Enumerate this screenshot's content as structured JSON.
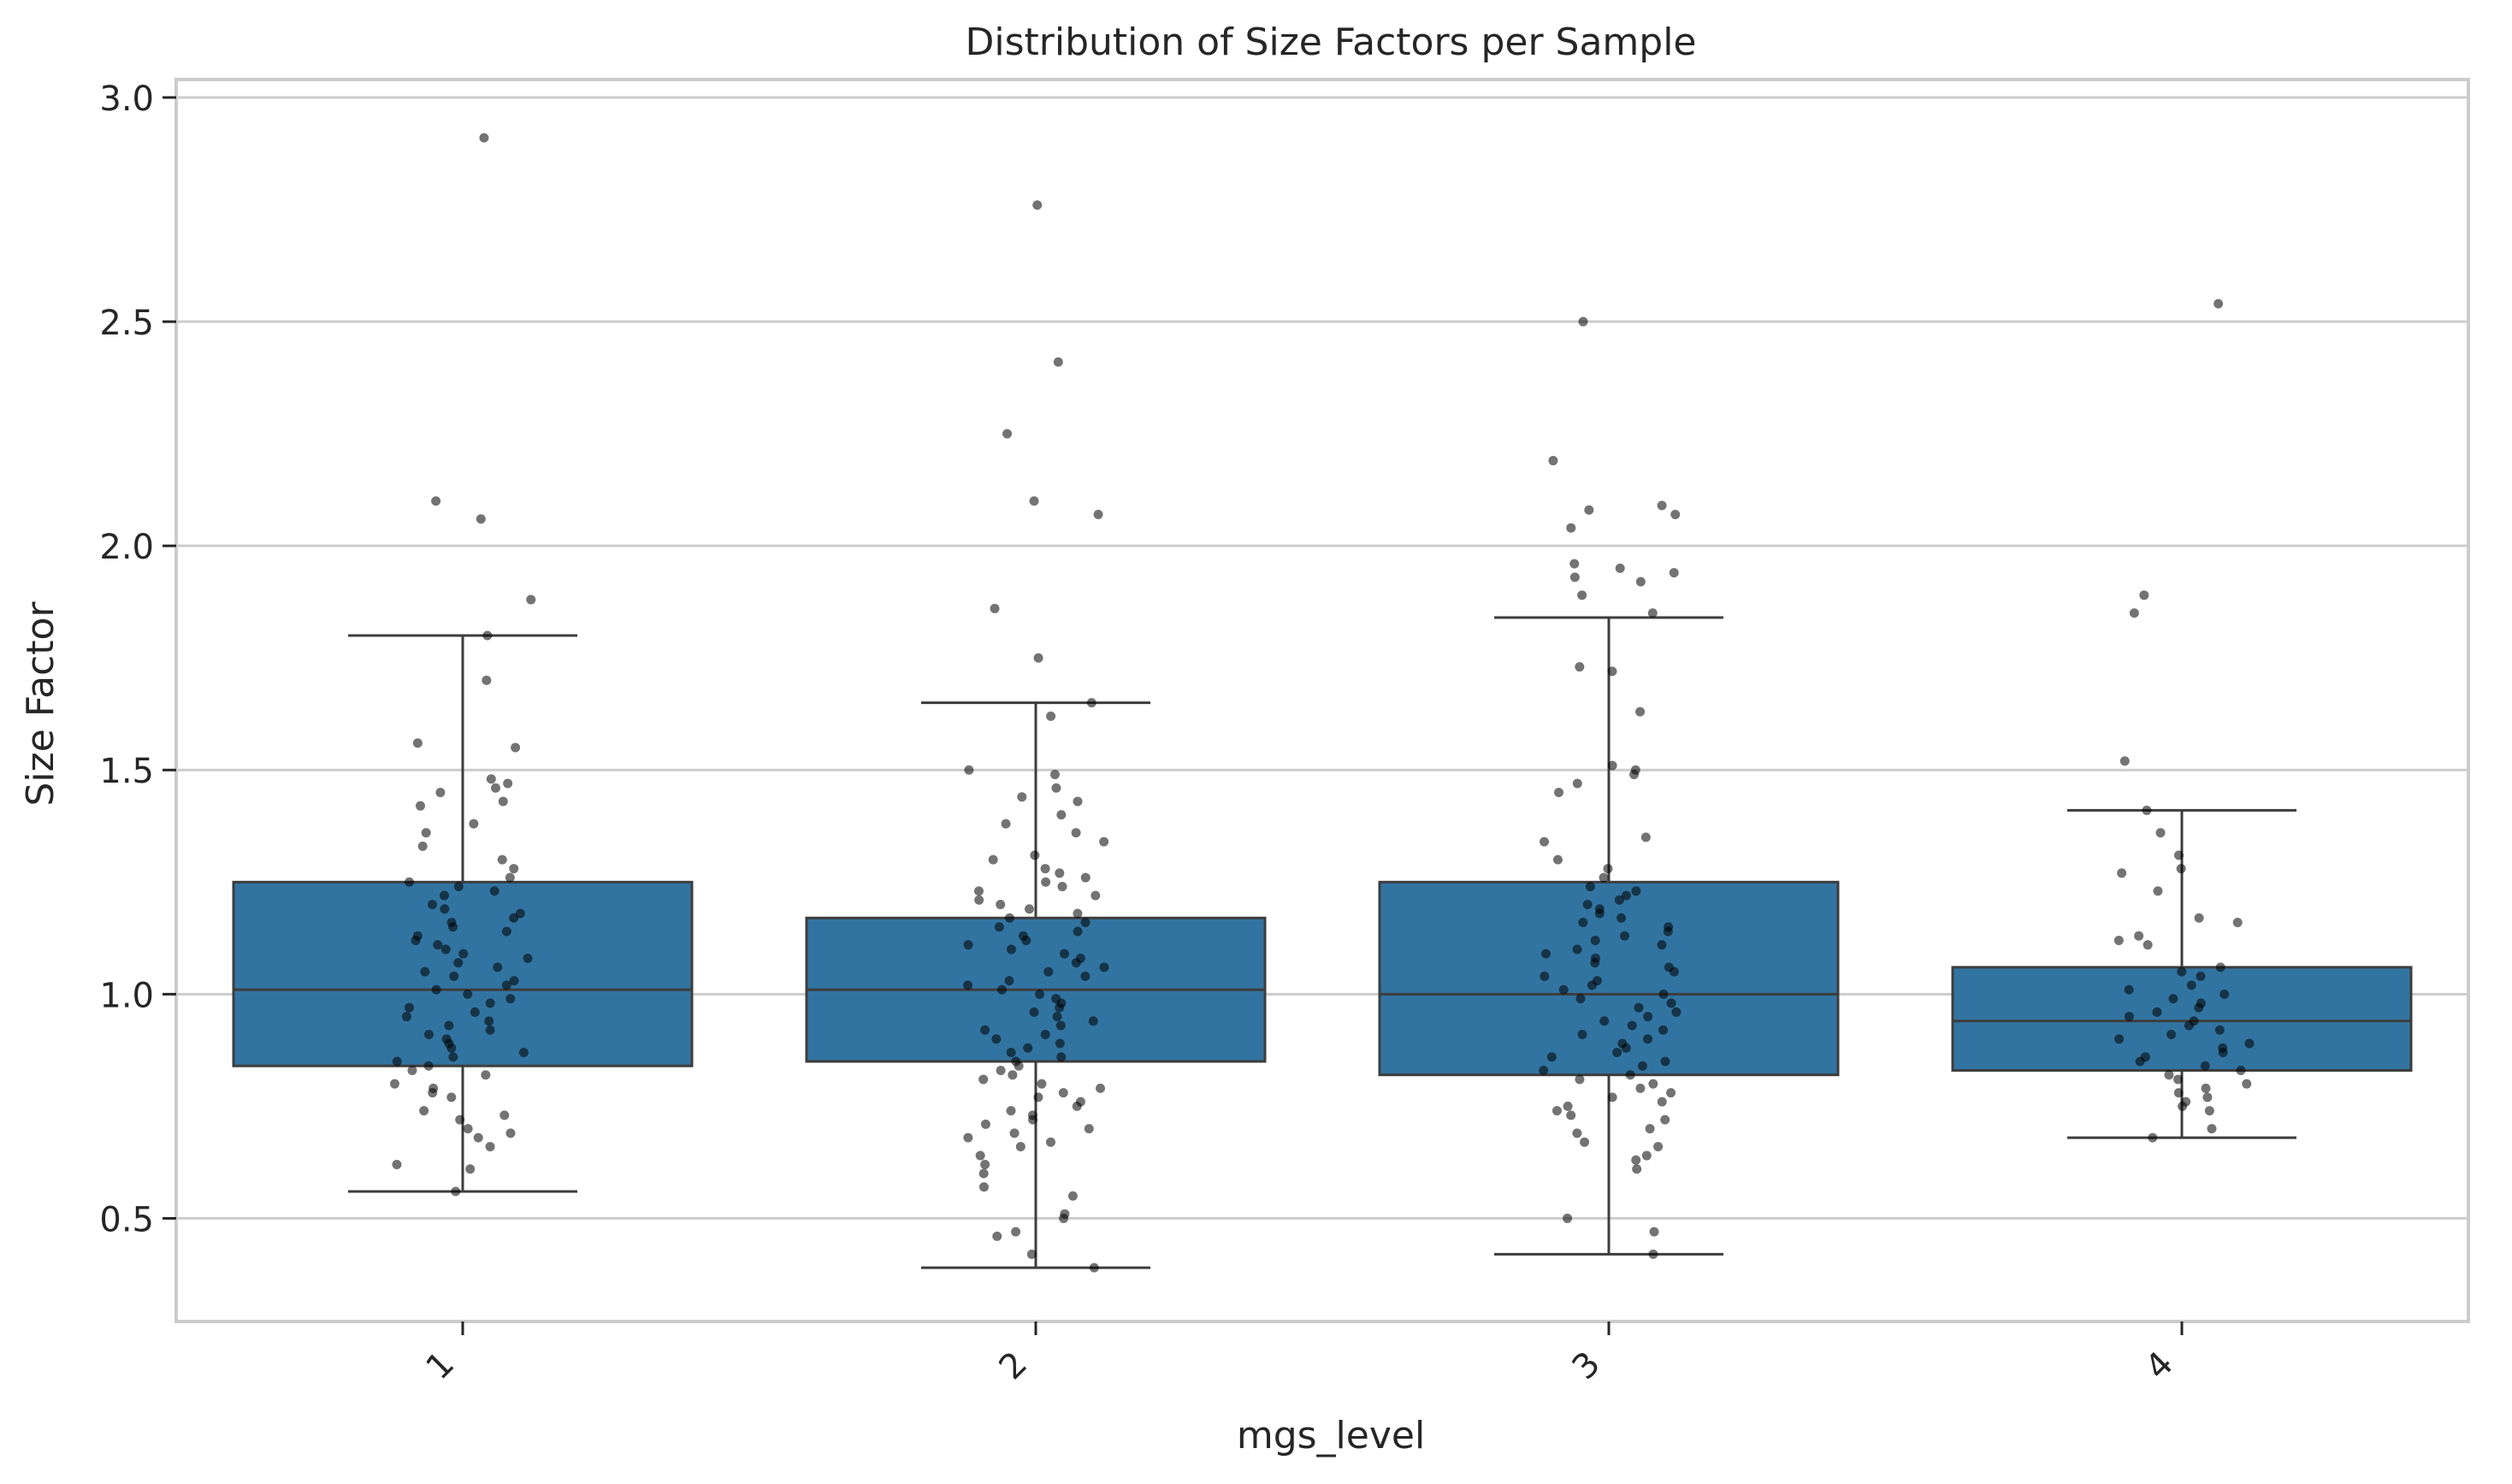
{
  "chart_data": {
    "type": "box",
    "title": "Distribution of Size Factors per Sample",
    "xlabel": "mgs_level",
    "ylabel": "Size Factor",
    "categories": [
      "1",
      "2",
      "3",
      "4"
    ],
    "ylim": [
      0.27,
      3.04
    ],
    "yticks": [
      0.5,
      1.0,
      1.5,
      2.0,
      2.5,
      3.0
    ],
    "ytick_labels": [
      "0.5",
      "1.0",
      "1.5",
      "2.0",
      "2.5",
      "3.0"
    ],
    "grid": "horizontal",
    "legend": "none",
    "colors": {
      "box": "#3274a1",
      "outline": "#3d3d3d",
      "points": "#000000",
      "grid": "#cccccc",
      "frame": "#cccccc"
    },
    "boxes": [
      {
        "category": "1",
        "whisker_low": 0.56,
        "q1": 0.84,
        "median": 1.01,
        "q3": 1.25,
        "whisker_high": 1.8
      },
      {
        "category": "2",
        "whisker_low": 0.39,
        "q1": 0.85,
        "median": 1.01,
        "q3": 1.17,
        "whisker_high": 1.65
      },
      {
        "category": "3",
        "whisker_low": 0.42,
        "q1": 0.82,
        "median": 1.0,
        "q3": 1.25,
        "whisker_high": 1.84
      },
      {
        "category": "4",
        "whisker_low": 0.68,
        "q1": 0.83,
        "median": 0.94,
        "q3": 1.06,
        "whisker_high": 1.41
      }
    ],
    "points": {
      "1": [
        2.91,
        2.1,
        2.06,
        1.88,
        1.8,
        1.7,
        1.56,
        1.55,
        1.48,
        1.47,
        1.46,
        1.45,
        1.43,
        1.42,
        1.38,
        1.36,
        1.33,
        1.3,
        1.28,
        1.26,
        1.25,
        1.24,
        1.23,
        1.22,
        1.2,
        1.19,
        1.18,
        1.17,
        1.16,
        1.15,
        1.14,
        1.13,
        1.12,
        1.11,
        1.1,
        1.09,
        1.08,
        1.07,
        1.06,
        1.05,
        1.04,
        1.03,
        1.02,
        1.01,
        1.0,
        0.99,
        0.98,
        0.97,
        0.96,
        0.95,
        0.94,
        0.93,
        0.92,
        0.91,
        0.9,
        0.89,
        0.88,
        0.87,
        0.86,
        0.85,
        0.84,
        0.83,
        0.82,
        0.8,
        0.79,
        0.78,
        0.77,
        0.74,
        0.73,
        0.72,
        0.7,
        0.69,
        0.68,
        0.66,
        0.62,
        0.61,
        0.56
      ],
      "2": [
        2.76,
        2.41,
        2.25,
        2.1,
        2.07,
        1.86,
        1.75,
        1.65,
        1.62,
        1.5,
        1.49,
        1.46,
        1.44,
        1.43,
        1.4,
        1.38,
        1.36,
        1.34,
        1.31,
        1.3,
        1.28,
        1.27,
        1.26,
        1.25,
        1.24,
        1.23,
        1.22,
        1.21,
        1.2,
        1.19,
        1.18,
        1.17,
        1.16,
        1.15,
        1.14,
        1.13,
        1.12,
        1.11,
        1.1,
        1.09,
        1.08,
        1.07,
        1.06,
        1.05,
        1.04,
        1.03,
        1.02,
        1.01,
        1.0,
        0.99,
        0.98,
        0.97,
        0.96,
        0.95,
        0.94,
        0.93,
        0.92,
        0.91,
        0.9,
        0.89,
        0.88,
        0.87,
        0.86,
        0.85,
        0.84,
        0.83,
        0.82,
        0.81,
        0.8,
        0.79,
        0.78,
        0.77,
        0.76,
        0.75,
        0.74,
        0.73,
        0.72,
        0.71,
        0.7,
        0.69,
        0.68,
        0.67,
        0.66,
        0.64,
        0.62,
        0.6,
        0.57,
        0.55,
        0.51,
        0.5,
        0.47,
        0.46,
        0.42,
        0.39
      ],
      "3": [
        2.5,
        2.19,
        2.09,
        2.08,
        2.07,
        2.04,
        1.96,
        1.95,
        1.94,
        1.93,
        1.92,
        1.89,
        1.85,
        1.73,
        1.72,
        1.63,
        1.51,
        1.5,
        1.49,
        1.47,
        1.45,
        1.35,
        1.34,
        1.3,
        1.28,
        1.26,
        1.24,
        1.23,
        1.22,
        1.21,
        1.2,
        1.19,
        1.18,
        1.17,
        1.16,
        1.15,
        1.14,
        1.13,
        1.12,
        1.11,
        1.1,
        1.09,
        1.08,
        1.07,
        1.06,
        1.05,
        1.04,
        1.03,
        1.02,
        1.01,
        1.0,
        0.99,
        0.98,
        0.97,
        0.96,
        0.95,
        0.94,
        0.93,
        0.92,
        0.91,
        0.9,
        0.89,
        0.88,
        0.87,
        0.86,
        0.85,
        0.84,
        0.83,
        0.82,
        0.81,
        0.8,
        0.79,
        0.78,
        0.77,
        0.76,
        0.75,
        0.74,
        0.73,
        0.72,
        0.7,
        0.69,
        0.67,
        0.66,
        0.64,
        0.63,
        0.61,
        0.5,
        0.47,
        0.42
      ],
      "4": [
        2.54,
        1.89,
        1.85,
        1.52,
        1.41,
        1.36,
        1.31,
        1.28,
        1.27,
        1.23,
        1.17,
        1.16,
        1.13,
        1.12,
        1.11,
        1.06,
        1.05,
        1.04,
        1.02,
        1.01,
        1.0,
        0.99,
        0.98,
        0.97,
        0.96,
        0.95,
        0.94,
        0.93,
        0.92,
        0.91,
        0.9,
        0.89,
        0.88,
        0.87,
        0.86,
        0.85,
        0.84,
        0.83,
        0.82,
        0.81,
        0.8,
        0.79,
        0.78,
        0.77,
        0.76,
        0.75,
        0.74,
        0.7,
        0.68
      ]
    }
  }
}
